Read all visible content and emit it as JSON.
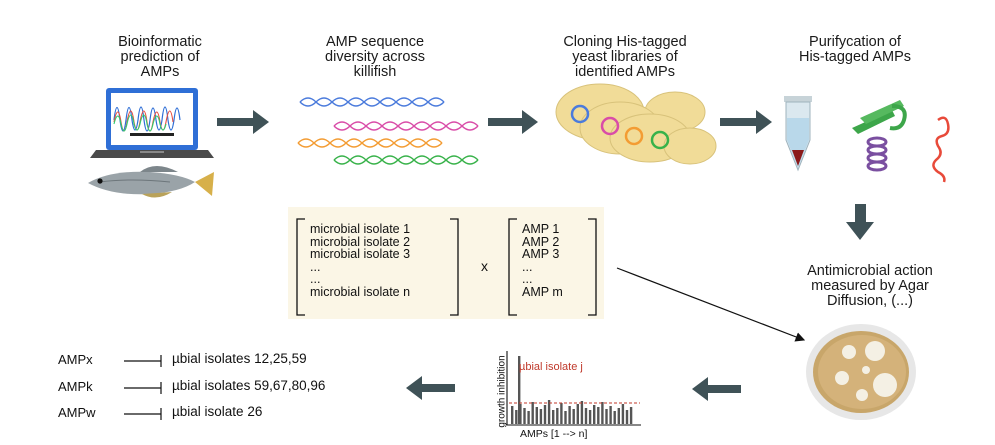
{
  "steps": [
    {
      "lines": [
        "Bioinformatic",
        "prediction of",
        "AMPs"
      ]
    },
    {
      "lines": [
        "AMP sequence",
        "diversity across",
        "killifish"
      ]
    },
    {
      "lines": [
        "Cloning His-tagged",
        "yeast libraries of",
        "identified AMPs"
      ]
    },
    {
      "lines": [
        "Purifycation of",
        "His-tagged AMPs"
      ]
    },
    {
      "lines": [
        "Antimicrobial action",
        "measured by Agar",
        "Diffusion, (...)"
      ]
    }
  ],
  "matrix": {
    "isolates": [
      "microbial isolate 1",
      "microbial isolate 2",
      "microbial isolate 3",
      "...",
      "...",
      "microbial isolate n"
    ],
    "times": "x",
    "amps": [
      "AMP 1",
      "AMP 2",
      "AMP 3",
      "...",
      "...",
      "AMP m"
    ]
  },
  "chart": {
    "inset_label": "µbial isolate j",
    "ylabel": "growth inhibition",
    "xlabel": "AMPs [1 --> n]"
  },
  "results": [
    {
      "amp": "AMPx",
      "isolates": "µbial isolates 12,25,59"
    },
    {
      "amp": "AMPk",
      "isolates": "µbial isolates 59,67,80,96"
    },
    {
      "amp": "AMPw",
      "isolates": "µbial isolate 26"
    }
  ],
  "colors": {
    "arrow": "#3f5257",
    "panel": "#fbf6e6",
    "inset_label": "#c0392b",
    "laptop": "#2f6fd6",
    "yeast": "#f1dc98"
  }
}
